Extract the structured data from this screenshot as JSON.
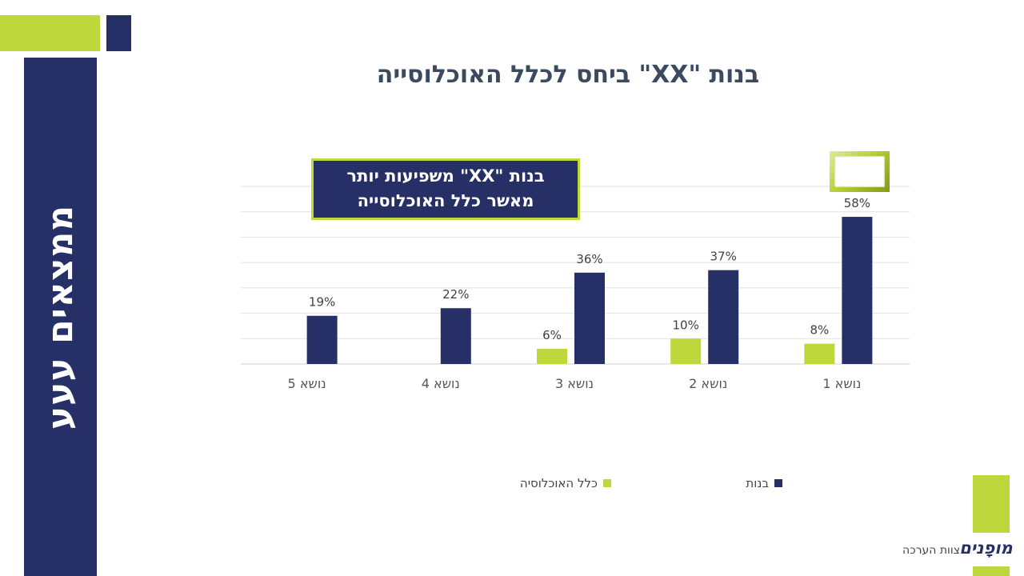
{
  "side_title": "ממצאים עעע",
  "title": "בנות \"XX\" ביחס לכלל האוכלוסייה",
  "callout": {
    "line1": "בנות \"XX\" משפיעות יותר",
    "line2": "מאשר כלל האוכלוסייה"
  },
  "colors": {
    "navy": "#263066",
    "green": "#bed73c"
  },
  "chart_data": {
    "type": "bar",
    "title": "בנות \"XX\" ביחס לכלל האוכלוסייה",
    "categories": [
      "נושא 1",
      "נושא 2",
      "נושא 3",
      "נושא 4",
      "נושא 5"
    ],
    "series": [
      {
        "name": "כלל האוכלוסיה",
        "color": "#bed73c",
        "values": [
          8,
          10,
          6,
          null,
          null
        ],
        "labels": [
          "8%",
          "10%",
          "6%",
          "",
          ""
        ]
      },
      {
        "name": "בנות",
        "color": "#263066",
        "values": [
          58,
          37,
          36,
          22,
          19
        ],
        "labels": [
          "58%",
          "37%",
          "36%",
          "22%",
          "19%"
        ]
      }
    ],
    "ylim": [
      0,
      70
    ],
    "grid": true,
    "legend": "bottom",
    "category_order": "right-to-left"
  },
  "legend": {
    "population": "כלל האוכלוסיה",
    "girls": "בנות"
  },
  "footer": {
    "team": "צוות הערכה",
    "logo": "מופָנים"
  }
}
